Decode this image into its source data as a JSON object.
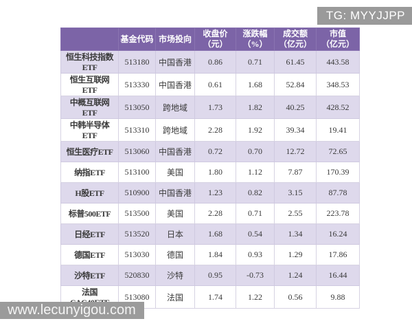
{
  "badge": {
    "text": "TG: MYYJJPP"
  },
  "watermark": {
    "text": "www.lecunyigou.com"
  },
  "colors": {
    "header_bg": "#7c64a7",
    "row_alt_bg": "#ded9ec",
    "row_bg": "#ffffff",
    "badge_bg": "#9a9a9a",
    "text": "#3a3a3a",
    "header_text": "#ffffff"
  },
  "chart_data": {
    "type": "table",
    "title": "",
    "columns": [
      "",
      "基金代码",
      "市场投向",
      "收盘价\n（元）",
      "涨跌幅\n（%）",
      "成交额\n（亿元）",
      "市值\n（亿元）"
    ],
    "rows": [
      [
        "恒生科技指数ETF",
        "513180",
        "中国香港",
        "0.86",
        "0.71",
        "61.45",
        "443.58"
      ],
      [
        "恒生互联网ETF",
        "513330",
        "中国香港",
        "0.61",
        "1.68",
        "52.84",
        "348.53"
      ],
      [
        "中概互联网ETF",
        "513050",
        "跨地域",
        "1.73",
        "1.82",
        "40.25",
        "428.52"
      ],
      [
        "中韩半导体ETF",
        "513310",
        "跨地域",
        "2.28",
        "1.92",
        "39.34",
        "19.41"
      ],
      [
        "恒生医疗ETF",
        "513060",
        "中国香港",
        "0.72",
        "0.70",
        "12.72",
        "72.65"
      ],
      [
        "纳指ETF",
        "513100",
        "美国",
        "1.80",
        "1.12",
        "7.87",
        "170.39"
      ],
      [
        "H股ETF",
        "510900",
        "中国香港",
        "1.23",
        "0.82",
        "3.15",
        "87.78"
      ],
      [
        "标普500ETF",
        "513500",
        "美国",
        "2.28",
        "0.71",
        "2.55",
        "223.78"
      ],
      [
        "日经ETF",
        "513520",
        "日本",
        "1.68",
        "0.54",
        "1.34",
        "16.24"
      ],
      [
        "德国ETF",
        "513030",
        "德国",
        "1.84",
        "0.93",
        "1.29",
        "17.86"
      ],
      [
        "沙特ETF",
        "520830",
        "沙特",
        "0.95",
        "-0.73",
        "1.24",
        "16.44"
      ],
      [
        "法国CAC40ETF",
        "513080",
        "法国",
        "1.74",
        "1.22",
        "0.56",
        "9.88"
      ]
    ]
  }
}
